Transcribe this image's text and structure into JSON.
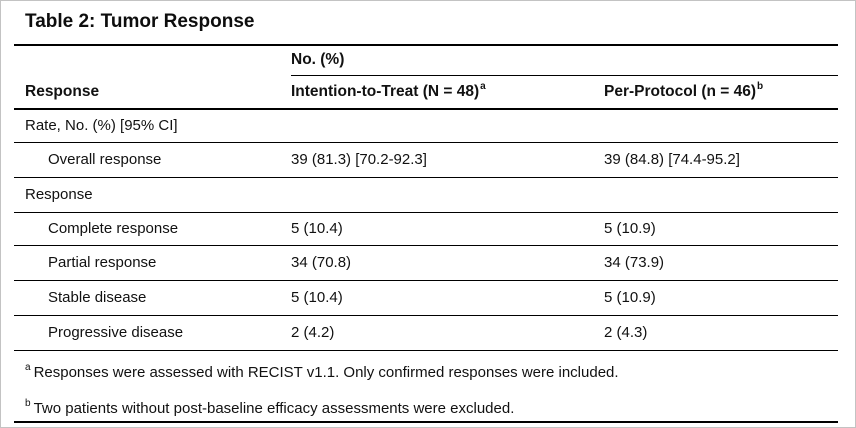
{
  "title": "Table 2: Tumor Response",
  "colors": {
    "text": "#111111",
    "rule": "#000000",
    "frame_border": "#c3c3c3",
    "background": "#ffffff"
  },
  "table": {
    "spanner_label": "No. (%)",
    "columns": [
      {
        "label": "Response",
        "superscript": ""
      },
      {
        "label": "Intention-to-Treat (N = 48)",
        "superscript": "a"
      },
      {
        "label": "Per-Protocol (n = 46)",
        "superscript": "b"
      }
    ],
    "rows": [
      {
        "type": "section",
        "label": "Rate, No. (%) [95% CI]",
        "itt": "",
        "pp": ""
      },
      {
        "type": "item",
        "label": "Overall response",
        "itt": "39 (81.3) [70.2-92.3]",
        "pp": "39 (84.8) [74.4-95.2]"
      },
      {
        "type": "section",
        "label": "Response",
        "itt": "",
        "pp": ""
      },
      {
        "type": "item",
        "label": "Complete response",
        "itt": "5 (10.4)",
        "pp": "5 (10.9)"
      },
      {
        "type": "item",
        "label": "Partial response",
        "itt": "34 (70.8)",
        "pp": "34 (73.9)"
      },
      {
        "type": "item",
        "label": "Stable disease",
        "itt": "5 (10.4)",
        "pp": "5 (10.9)"
      },
      {
        "type": "item",
        "label": "Progressive disease",
        "itt": "2 (4.2)",
        "pp": "2 (4.3)"
      }
    ],
    "footnotes": [
      {
        "marker": "a",
        "text": "Responses were assessed with RECIST v1.1. Only confirmed responses were included."
      },
      {
        "marker": "b",
        "text": "Two patients without post-baseline efficacy assessments were excluded."
      }
    ]
  }
}
